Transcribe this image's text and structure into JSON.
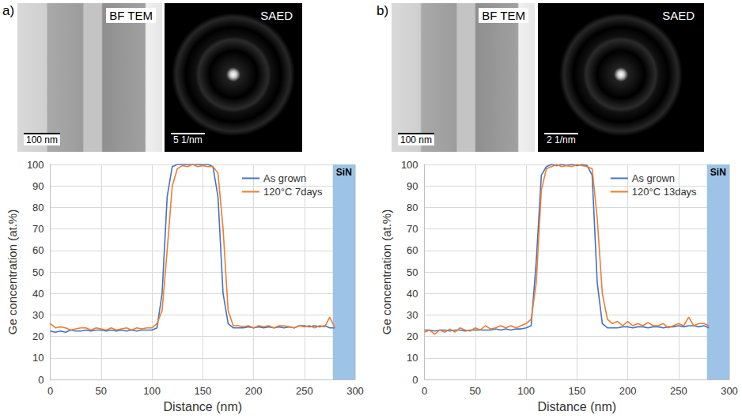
{
  "images": [
    {
      "panel": "a)",
      "items": [
        {
          "caption": "BF TEM",
          "scale_bar": "100 nm"
        },
        {
          "caption": "SAED",
          "scale_bar": "5 1/nm"
        }
      ]
    },
    {
      "panel": "b)",
      "items": [
        {
          "caption": "BF TEM",
          "scale_bar": "100 nm"
        },
        {
          "caption": "SAED",
          "scale_bar": "2 1/nm"
        }
      ]
    }
  ],
  "chart_data": [
    {
      "type": "line",
      "x_label": "Distance (nm)",
      "y_label": "Ge concentration (at.%)",
      "x": [
        0,
        5,
        10,
        15,
        20,
        25,
        30,
        35,
        40,
        45,
        50,
        55,
        60,
        65,
        70,
        75,
        80,
        85,
        90,
        95,
        100,
        105,
        110,
        115,
        120,
        125,
        130,
        135,
        140,
        145,
        150,
        155,
        160,
        165,
        170,
        175,
        180,
        185,
        190,
        195,
        200,
        205,
        210,
        215,
        220,
        225,
        230,
        235,
        240,
        245,
        250,
        255,
        260,
        265,
        270,
        275,
        280
      ],
      "series": [
        {
          "name": "As grown",
          "color": "#4472c4",
          "values": [
            22.5,
            22,
            22.5,
            22,
            23,
            22.5,
            22.5,
            23,
            22.5,
            23,
            23,
            22.5,
            23,
            22.5,
            23,
            22.5,
            23,
            22.5,
            23,
            23,
            23,
            24,
            40,
            85,
            99,
            100,
            100,
            100,
            100,
            100,
            100,
            100,
            99,
            85,
            40,
            26,
            24,
            24,
            24,
            24.5,
            24,
            24.5,
            24,
            24.5,
            24,
            24.5,
            24,
            24.5,
            24,
            25,
            25,
            24.5,
            25,
            24.5,
            25,
            24,
            24
          ]
        },
        {
          "name": "120°C 7days",
          "color": "#ed7d31",
          "values": [
            26,
            24,
            24.5,
            24,
            23,
            23.5,
            24,
            24,
            23,
            24,
            23.5,
            23,
            24,
            23,
            23.5,
            24,
            23,
            24,
            23.5,
            24,
            24,
            26,
            32,
            60,
            90,
            98,
            99.5,
            99,
            100,
            99,
            99.5,
            99,
            99,
            96,
            70,
            32,
            25,
            25,
            24.5,
            25,
            24,
            25,
            24.5,
            25,
            24,
            25,
            25,
            24.5,
            24,
            25,
            24.5,
            25,
            24,
            25,
            24.5,
            29,
            24
          ]
        }
      ],
      "annotations": [
        {
          "text": "SiN",
          "x_start": 278,
          "x_end": 300,
          "color": "#9dc3e6"
        }
      ],
      "xlim": [
        0,
        300
      ],
      "xticks": [
        0,
        50,
        100,
        150,
        200,
        250,
        300
      ],
      "ylim": [
        0,
        100
      ],
      "yticks": [
        0,
        10,
        20,
        30,
        40,
        50,
        60,
        70,
        80,
        90,
        100
      ],
      "grid": true,
      "legend": "upper right"
    },
    {
      "type": "line",
      "x_label": "Distance (nm)",
      "y_label": "Ge concentration (at.%)",
      "x": [
        0,
        5,
        10,
        15,
        20,
        25,
        30,
        35,
        40,
        45,
        50,
        55,
        60,
        65,
        70,
        75,
        80,
        85,
        90,
        95,
        100,
        105,
        110,
        115,
        120,
        125,
        130,
        135,
        140,
        145,
        150,
        155,
        160,
        165,
        170,
        175,
        180,
        185,
        190,
        195,
        200,
        205,
        210,
        215,
        220,
        225,
        230,
        235,
        240,
        245,
        250,
        255,
        260,
        265,
        270,
        275,
        280
      ],
      "series": [
        {
          "name": "As grown",
          "color": "#4472c4",
          "values": [
            23,
            23,
            22.5,
            23,
            23,
            22.5,
            23,
            23,
            22.5,
            23,
            23,
            23,
            23,
            23,
            23.5,
            23,
            23.5,
            23,
            23.5,
            23.5,
            24,
            25,
            55,
            95,
            99,
            100,
            99.5,
            100,
            99.5,
            100,
            99.5,
            100,
            99.5,
            95,
            45,
            26,
            24,
            24,
            24,
            24.5,
            24.5,
            24,
            24.5,
            24.5,
            24,
            24.5,
            24.5,
            24,
            24.5,
            24.5,
            25,
            24.5,
            25,
            25,
            24.5,
            25,
            24
          ]
        },
        {
          "name": "120°C 13days",
          "color": "#ed7d31",
          "values": [
            22,
            23,
            21,
            23,
            22,
            23.5,
            22,
            24,
            23,
            22.5,
            24,
            23,
            25,
            23.5,
            24,
            25,
            24,
            25,
            24,
            25,
            26,
            28,
            45,
            88,
            98,
            99,
            100,
            99,
            99.5,
            99,
            100,
            99.5,
            99,
            98,
            75,
            40,
            28,
            26,
            27,
            25,
            27,
            25,
            26,
            25,
            26.5,
            25,
            25,
            26,
            24,
            25,
            26,
            25,
            29,
            25,
            26,
            26,
            25
          ]
        }
      ],
      "annotations": [
        {
          "text": "SiN",
          "x_start": 278,
          "x_end": 300,
          "color": "#9dc3e6"
        }
      ],
      "xlim": [
        0,
        300
      ],
      "xticks": [
        0,
        50,
        100,
        150,
        200,
        250,
        300
      ],
      "ylim": [
        0,
        100
      ],
      "yticks": [
        0,
        10,
        20,
        30,
        40,
        50,
        60,
        70,
        80,
        90,
        100
      ],
      "grid": true,
      "legend": "upper right"
    }
  ]
}
